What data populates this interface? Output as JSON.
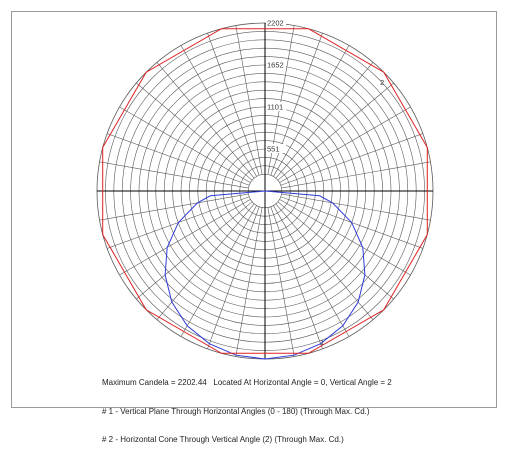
{
  "chart_data": {
    "type": "polar",
    "title": "",
    "rmax": 2202,
    "ring_step": 110.1,
    "ring_labels": [
      "551",
      "1101",
      "1652",
      "2202"
    ],
    "spoke_step_deg": 10,
    "series": [
      {
        "marker": "1",
        "color": "#2f3cd9",
        "points": [
          {
            "angle": 0,
            "value": 2202
          },
          {
            "angle": 10,
            "value": 2185
          },
          {
            "angle": 20,
            "value": 2130
          },
          {
            "angle": 30,
            "value": 2040
          },
          {
            "angle": 40,
            "value": 1900
          },
          {
            "angle": 50,
            "value": 1710
          },
          {
            "angle": 60,
            "value": 1480
          },
          {
            "angle": 70,
            "value": 1210
          },
          {
            "angle": 80,
            "value": 900
          },
          {
            "angle": 85,
            "value": 720
          },
          {
            "angle": 90,
            "value": 0
          }
        ]
      },
      {
        "marker": "2",
        "color": "#e02222",
        "points": [
          {
            "angle": 0,
            "value": 2202
          },
          {
            "angle": 30,
            "value": 2202
          },
          {
            "angle": 60,
            "value": 2202
          },
          {
            "angle": 90,
            "value": 2202
          },
          {
            "angle": 120,
            "value": 2202
          },
          {
            "angle": 150,
            "value": 2202
          },
          {
            "angle": 180,
            "value": 2202
          }
        ]
      }
    ]
  },
  "notes": [
    "Maximum Candela = 2202.44   Located At Horizontal Angle = 0, Vertical Angle = 2",
    "# 1 - Vertical Plane Through Horizontal Angles (0 - 180) (Through Max. Cd.)",
    "# 2 - Horizontal Cone Through Vertical Angle (2) (Through Max. Cd.)"
  ],
  "colors": {
    "grid": "#5a5a5a",
    "axis": "#000000"
  }
}
